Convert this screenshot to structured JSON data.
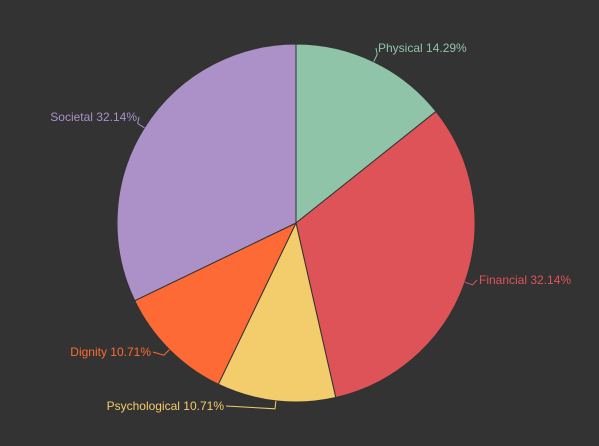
{
  "chart_data": {
    "type": "pie",
    "start_angle_deg": 0,
    "direction": "clockwise",
    "legend": "none",
    "slices": [
      {
        "name": "Physical",
        "value": 14.29,
        "label": "Physical 14.29%",
        "color": "#8fc4a8"
      },
      {
        "name": "Financial",
        "value": 32.14,
        "label": "Financial 32.14%",
        "color": "#de5358"
      },
      {
        "name": "Psychological",
        "value": 10.71,
        "label": "Psychological 10.71%",
        "color": "#f3cc6b"
      },
      {
        "name": "Dignity",
        "value": 10.71,
        "label": "Dignity 10.71%",
        "color": "#fe6a35"
      },
      {
        "name": "Societal",
        "value": 32.14,
        "label": "Societal 32.14%",
        "color": "#ab91c8"
      }
    ]
  },
  "colors": {
    "background": "#333333",
    "slice_border": "#333333"
  }
}
